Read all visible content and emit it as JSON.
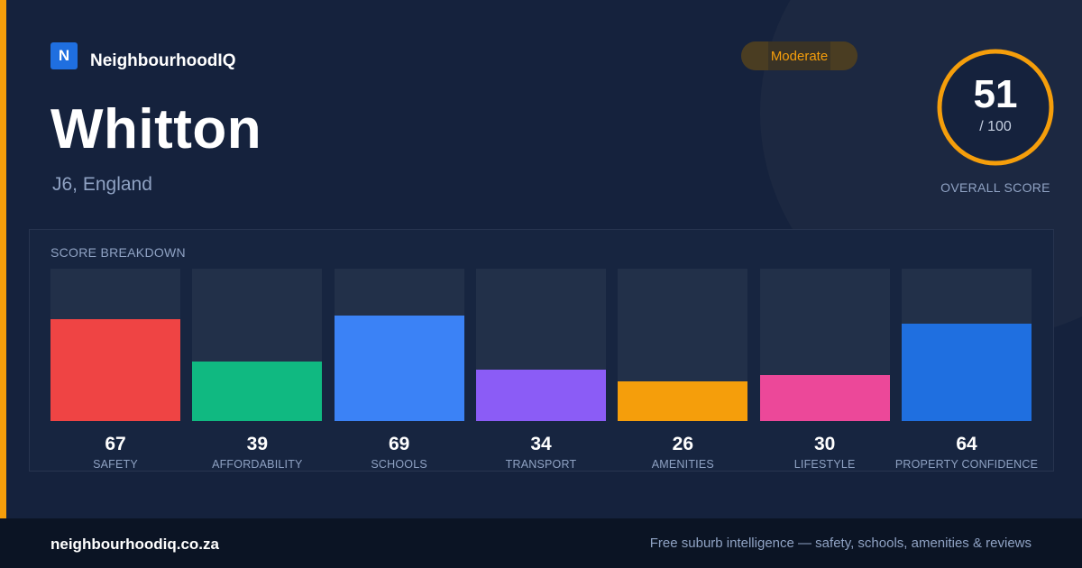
{
  "brand": {
    "logo_letter": "N",
    "name": "NeighbourhoodIQ"
  },
  "suburb": {
    "name": "Whitton",
    "location": "J6, England"
  },
  "rating_badge": "Moderate",
  "overall": {
    "score": "51",
    "max": "/ 100",
    "caption": "OVERALL SCORE",
    "fraction": 0.51
  },
  "breakdown": {
    "title": "SCORE BREAKDOWN",
    "items": [
      {
        "label": "SAFETY",
        "value": "67",
        "color": "#ef4444"
      },
      {
        "label": "AFFORDABILITY",
        "value": "39",
        "color": "#10b981"
      },
      {
        "label": "SCHOOLS",
        "value": "69",
        "color": "#3b82f6"
      },
      {
        "label": "TRANSPORT",
        "value": "34",
        "color": "#8b5cf6"
      },
      {
        "label": "AMENITIES",
        "value": "26",
        "color": "#f59e0b"
      },
      {
        "label": "LIFESTYLE",
        "value": "30",
        "color": "#ec4899"
      },
      {
        "label": "PROPERTY CONFIDENCE",
        "value": "64",
        "color": "#1f6fe0"
      }
    ]
  },
  "footer": {
    "url": "neighbourhoodiq.co.za",
    "tagline": "Free suburb intelligence — safety, schools, amenities & reviews"
  },
  "colors": {
    "accent": "#f59e0b",
    "background": "#15223d",
    "footer": "#0b1424"
  }
}
